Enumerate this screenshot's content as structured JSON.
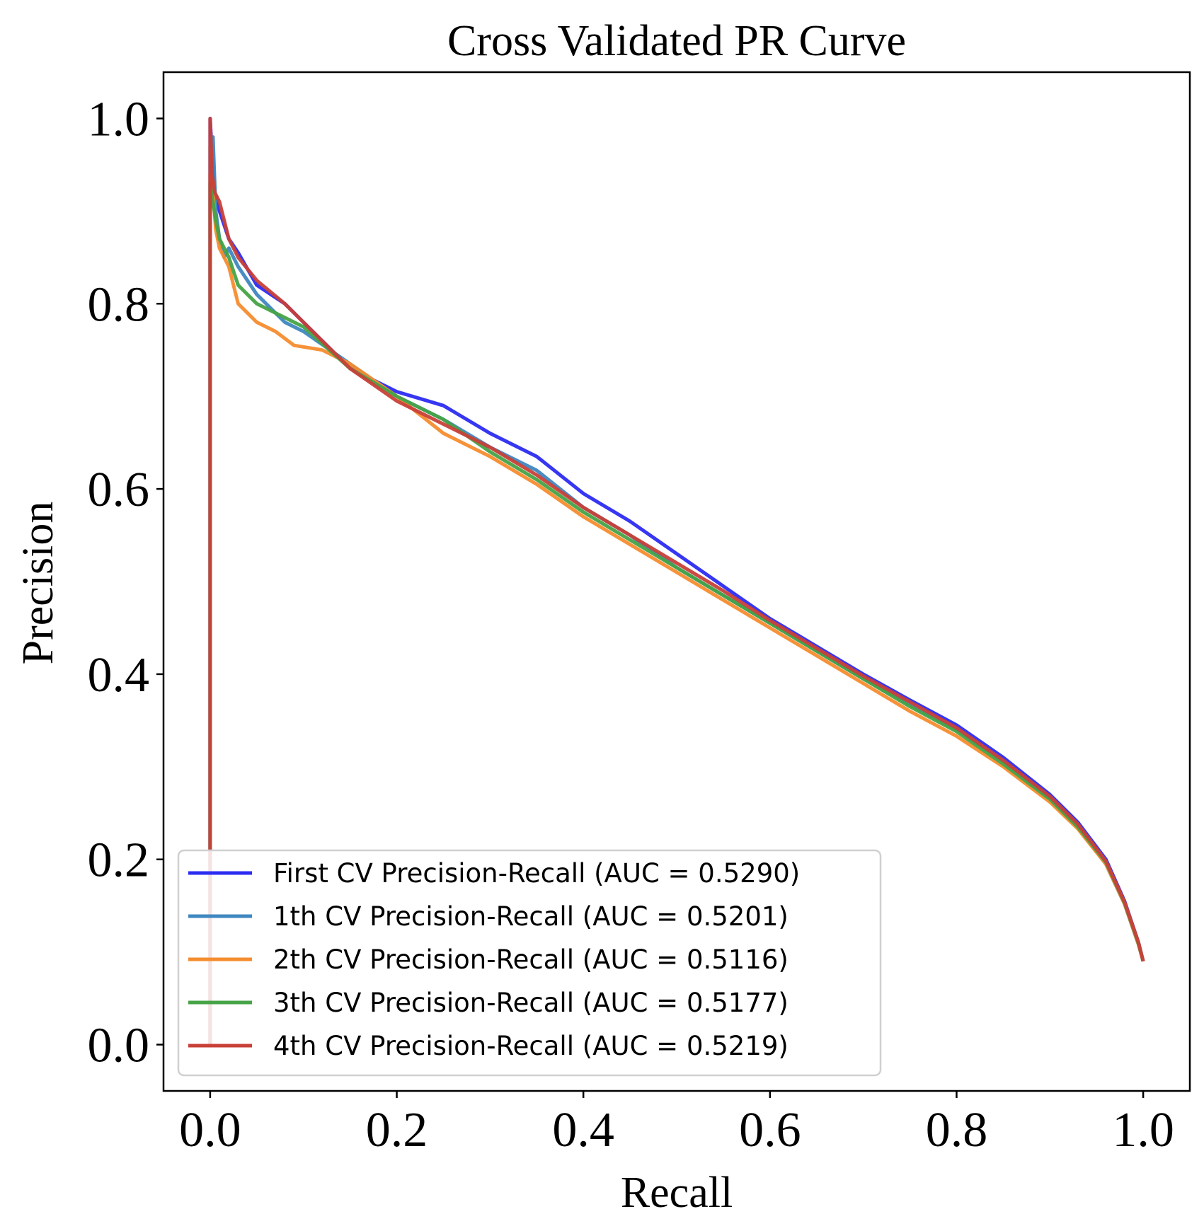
{
  "chart_data": {
    "type": "line",
    "title": "Cross Validated PR Curve",
    "xlabel": "Recall",
    "ylabel": "Precision",
    "xlim": [
      -0.05,
      1.05
    ],
    "ylim": [
      -0.05,
      1.05
    ],
    "x_ticks": [
      "0.0",
      "0.2",
      "0.4",
      "0.6",
      "0.8",
      "1.0"
    ],
    "y_ticks": [
      "0.0",
      "0.2",
      "0.4",
      "0.6",
      "0.8",
      "1.0"
    ],
    "grid": false,
    "legend_position": "lower-left",
    "series": [
      {
        "name": "First CV Precision-Recall (AUC = 0.5290)",
        "color": "#2b2bf2",
        "points": [
          [
            0.0,
            0.0
          ],
          [
            0.0,
            1.0
          ],
          [
            0.002,
            0.96
          ],
          [
            0.005,
            0.92
          ],
          [
            0.01,
            0.9
          ],
          [
            0.02,
            0.87
          ],
          [
            0.03,
            0.855
          ],
          [
            0.05,
            0.82
          ],
          [
            0.08,
            0.8
          ],
          [
            0.1,
            0.78
          ],
          [
            0.15,
            0.73
          ],
          [
            0.2,
            0.705
          ],
          [
            0.25,
            0.69
          ],
          [
            0.3,
            0.66
          ],
          [
            0.35,
            0.635
          ],
          [
            0.4,
            0.595
          ],
          [
            0.45,
            0.565
          ],
          [
            0.5,
            0.53
          ],
          [
            0.55,
            0.495
          ],
          [
            0.6,
            0.46
          ],
          [
            0.65,
            0.43
          ],
          [
            0.7,
            0.4
          ],
          [
            0.75,
            0.372
          ],
          [
            0.8,
            0.345
          ],
          [
            0.85,
            0.31
          ],
          [
            0.9,
            0.27
          ],
          [
            0.93,
            0.24
          ],
          [
            0.96,
            0.2
          ],
          [
            0.98,
            0.155
          ],
          [
            0.995,
            0.11
          ],
          [
            1.0,
            0.09
          ]
        ]
      },
      {
        "name": "1th CV Precision-Recall (AUC = 0.5201)",
        "color": "#3f87c0",
        "points": [
          [
            0.0,
            0.0
          ],
          [
            0.0,
            0.97
          ],
          [
            0.003,
            0.98
          ],
          [
            0.006,
            0.9
          ],
          [
            0.01,
            0.87
          ],
          [
            0.015,
            0.85
          ],
          [
            0.02,
            0.86
          ],
          [
            0.03,
            0.84
          ],
          [
            0.05,
            0.81
          ],
          [
            0.08,
            0.78
          ],
          [
            0.1,
            0.77
          ],
          [
            0.15,
            0.735
          ],
          [
            0.2,
            0.7
          ],
          [
            0.25,
            0.675
          ],
          [
            0.3,
            0.645
          ],
          [
            0.35,
            0.62
          ],
          [
            0.4,
            0.58
          ],
          [
            0.45,
            0.55
          ],
          [
            0.5,
            0.515
          ],
          [
            0.55,
            0.485
          ],
          [
            0.6,
            0.455
          ],
          [
            0.65,
            0.425
          ],
          [
            0.7,
            0.395
          ],
          [
            0.75,
            0.367
          ],
          [
            0.8,
            0.34
          ],
          [
            0.85,
            0.305
          ],
          [
            0.9,
            0.265
          ],
          [
            0.93,
            0.235
          ],
          [
            0.96,
            0.195
          ],
          [
            0.98,
            0.152
          ],
          [
            0.995,
            0.108
          ],
          [
            1.0,
            0.09
          ]
        ]
      },
      {
        "name": "2th CV Precision-Recall (AUC = 0.5116)",
        "color": "#f58c2e",
        "points": [
          [
            0.0,
            0.0
          ],
          [
            0.0,
            0.94
          ],
          [
            0.003,
            0.92
          ],
          [
            0.006,
            0.88
          ],
          [
            0.01,
            0.86
          ],
          [
            0.02,
            0.84
          ],
          [
            0.025,
            0.82
          ],
          [
            0.03,
            0.8
          ],
          [
            0.05,
            0.78
          ],
          [
            0.07,
            0.77
          ],
          [
            0.09,
            0.755
          ],
          [
            0.12,
            0.75
          ],
          [
            0.15,
            0.735
          ],
          [
            0.2,
            0.7
          ],
          [
            0.25,
            0.66
          ],
          [
            0.3,
            0.635
          ],
          [
            0.35,
            0.605
          ],
          [
            0.4,
            0.57
          ],
          [
            0.45,
            0.54
          ],
          [
            0.5,
            0.51
          ],
          [
            0.55,
            0.48
          ],
          [
            0.6,
            0.45
          ],
          [
            0.65,
            0.42
          ],
          [
            0.7,
            0.39
          ],
          [
            0.75,
            0.36
          ],
          [
            0.8,
            0.333
          ],
          [
            0.85,
            0.3
          ],
          [
            0.9,
            0.262
          ],
          [
            0.93,
            0.233
          ],
          [
            0.96,
            0.195
          ],
          [
            0.98,
            0.152
          ],
          [
            0.995,
            0.108
          ],
          [
            1.0,
            0.09
          ]
        ]
      },
      {
        "name": "3th CV Precision-Recall (AUC = 0.5177)",
        "color": "#46a346",
        "points": [
          [
            0.0,
            0.0
          ],
          [
            0.0,
            0.93
          ],
          [
            0.003,
            0.91
          ],
          [
            0.006,
            0.89
          ],
          [
            0.01,
            0.87
          ],
          [
            0.02,
            0.85
          ],
          [
            0.03,
            0.82
          ],
          [
            0.05,
            0.8
          ],
          [
            0.07,
            0.79
          ],
          [
            0.1,
            0.775
          ],
          [
            0.15,
            0.73
          ],
          [
            0.2,
            0.7
          ],
          [
            0.25,
            0.675
          ],
          [
            0.3,
            0.64
          ],
          [
            0.35,
            0.61
          ],
          [
            0.4,
            0.575
          ],
          [
            0.45,
            0.545
          ],
          [
            0.5,
            0.515
          ],
          [
            0.55,
            0.485
          ],
          [
            0.6,
            0.455
          ],
          [
            0.65,
            0.425
          ],
          [
            0.7,
            0.395
          ],
          [
            0.75,
            0.365
          ],
          [
            0.8,
            0.338
          ],
          [
            0.85,
            0.303
          ],
          [
            0.9,
            0.265
          ],
          [
            0.93,
            0.235
          ],
          [
            0.96,
            0.197
          ],
          [
            0.98,
            0.153
          ],
          [
            0.995,
            0.109
          ],
          [
            1.0,
            0.09
          ]
        ]
      },
      {
        "name": "4th CV Precision-Recall (AUC = 0.5219)",
        "color": "#c84038",
        "points": [
          [
            0.0,
            0.0
          ],
          [
            0.0,
            1.0
          ],
          [
            0.002,
            0.94
          ],
          [
            0.005,
            0.92
          ],
          [
            0.01,
            0.91
          ],
          [
            0.02,
            0.87
          ],
          [
            0.03,
            0.85
          ],
          [
            0.05,
            0.825
          ],
          [
            0.08,
            0.8
          ],
          [
            0.1,
            0.78
          ],
          [
            0.15,
            0.73
          ],
          [
            0.2,
            0.695
          ],
          [
            0.25,
            0.67
          ],
          [
            0.3,
            0.645
          ],
          [
            0.35,
            0.615
          ],
          [
            0.4,
            0.58
          ],
          [
            0.45,
            0.55
          ],
          [
            0.5,
            0.52
          ],
          [
            0.55,
            0.49
          ],
          [
            0.6,
            0.458
          ],
          [
            0.65,
            0.428
          ],
          [
            0.7,
            0.398
          ],
          [
            0.75,
            0.37
          ],
          [
            0.8,
            0.342
          ],
          [
            0.85,
            0.307
          ],
          [
            0.9,
            0.268
          ],
          [
            0.93,
            0.238
          ],
          [
            0.96,
            0.198
          ],
          [
            0.98,
            0.154
          ],
          [
            0.995,
            0.11
          ],
          [
            1.0,
            0.09
          ]
        ]
      }
    ]
  }
}
